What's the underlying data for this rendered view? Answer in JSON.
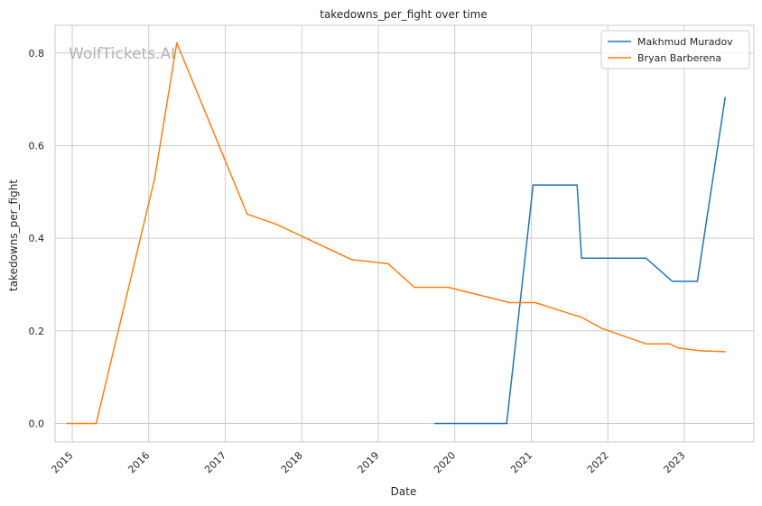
{
  "watermark": "WolfTickets.AI",
  "chart_data": {
    "type": "line",
    "title": "takedowns_per_fight over time",
    "xlabel": "Date",
    "ylabel": "takedowns_per_fight",
    "x_ticks": [
      "2015",
      "2016",
      "2017",
      "2018",
      "2019",
      "2020",
      "2021",
      "2022",
      "2023"
    ],
    "y_ticks": [
      "0.0",
      "0.2",
      "0.4",
      "0.6",
      "0.8"
    ],
    "xlim": [
      "2014-10-11",
      "2023-11-29"
    ],
    "ylim": [
      -0.04,
      0.86
    ],
    "grid": true,
    "legend_position": "top-right",
    "series": [
      {
        "name": "Makhmud Muradov",
        "color": "#1f77b4",
        "points": [
          [
            "2019-09-28",
            0.0
          ],
          [
            "2020-09-05",
            0.0
          ],
          [
            "2021-01-09",
            0.515
          ],
          [
            "2021-08-07",
            0.515
          ],
          [
            "2021-08-28",
            0.357
          ],
          [
            "2022-07-02",
            0.357
          ],
          [
            "2022-11-05",
            0.307
          ],
          [
            "2023-03-04",
            0.307
          ],
          [
            "2023-07-15",
            0.704
          ]
        ]
      },
      {
        "name": "Bryan Barberena",
        "color": "#ff7f0e",
        "points": [
          [
            "2014-12-06",
            0.0
          ],
          [
            "2015-04-25",
            0.0
          ],
          [
            "2016-01-30",
            0.53
          ],
          [
            "2016-05-14",
            0.822
          ],
          [
            "2017-04-15",
            0.452
          ],
          [
            "2017-09-02",
            0.43
          ],
          [
            "2018-08-25",
            0.354
          ],
          [
            "2019-02-17",
            0.345
          ],
          [
            "2019-06-22",
            0.294
          ],
          [
            "2019-11-30",
            0.294
          ],
          [
            "2020-09-19",
            0.261
          ],
          [
            "2021-01-20",
            0.261
          ],
          [
            "2021-07-31",
            0.233
          ],
          [
            "2021-08-21",
            0.231
          ],
          [
            "2021-12-04",
            0.205
          ],
          [
            "2022-07-02",
            0.172
          ],
          [
            "2022-10-22",
            0.172
          ],
          [
            "2022-12-03",
            0.163
          ],
          [
            "2023-03-18",
            0.157
          ],
          [
            "2023-07-15",
            0.155
          ]
        ]
      }
    ]
  }
}
